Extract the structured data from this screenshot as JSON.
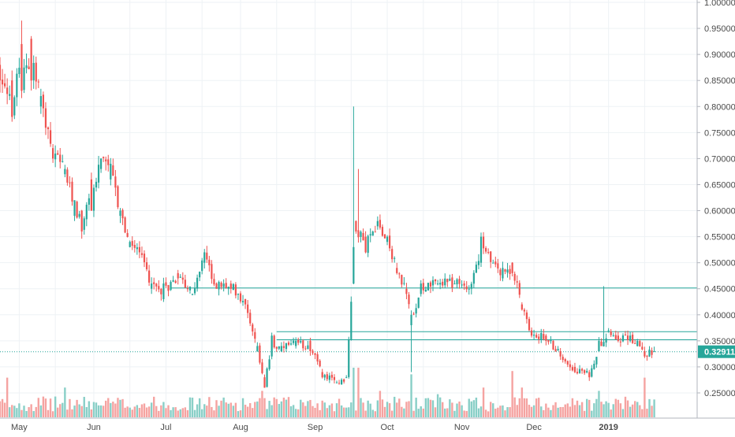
{
  "chart_data": {
    "type": "candlestick",
    "title": "",
    "xlabel": "",
    "ylabel": "",
    "ylim": [
      0.2,
      1.0
    ],
    "y_ticks": [
      "1.00000",
      "0.95000",
      "0.90000",
      "0.85000",
      "0.80000",
      "0.75000",
      "0.70000",
      "0.65000",
      "0.60000",
      "0.55000",
      "0.50000",
      "0.45000",
      "0.40000",
      "0.35000",
      "0.30000",
      "0.25000"
    ],
    "x_ticks": [
      "May",
      "Jun",
      "Jul",
      "Aug",
      "Sep",
      "Oct",
      "Nov",
      "Dec",
      "2019"
    ],
    "grid": true,
    "last_price_label": "0.32911",
    "colors": {
      "up": "#26a69a",
      "down": "#ef5350",
      "volume_up": "#89cfc7",
      "volume_down": "#f5a3a1",
      "grid": "#eef2f5",
      "axis_text": "#4a4a4a",
      "price_tag": "#26a69a"
    },
    "horizontal_lines": [
      {
        "price": 0.4515,
        "start": "2018-07-03"
      },
      {
        "price": 0.3675,
        "start": "2018-08-16"
      },
      {
        "price": 0.352,
        "start": "2018-08-16"
      },
      {
        "price": 0.3291,
        "start": "2018-04-23",
        "dotted": true
      }
    ],
    "anchors": [
      [
        "2018-04-23",
        0.88,
        0.85
      ],
      [
        "2018-04-28",
        0.85,
        0.78
      ],
      [
        "2018-05-02",
        0.92,
        0.83
      ],
      [
        "2018-05-06",
        0.93,
        0.85
      ],
      [
        "2018-05-10",
        0.8,
        0.82
      ],
      [
        "2018-05-15",
        0.72,
        0.7
      ],
      [
        "2018-05-20",
        0.67,
        0.68
      ],
      [
        "2018-05-24",
        0.59,
        0.62
      ],
      [
        "2018-05-27",
        0.6,
        0.56
      ],
      [
        "2018-05-31",
        0.66,
        0.6
      ],
      [
        "2018-06-04",
        0.68,
        0.7
      ],
      [
        "2018-06-08",
        0.66,
        0.69
      ],
      [
        "2018-06-12",
        0.59,
        0.6
      ],
      [
        "2018-06-16",
        0.53,
        0.54
      ],
      [
        "2018-06-20",
        0.53,
        0.52
      ],
      [
        "2018-06-25",
        0.45,
        0.46
      ],
      [
        "2018-06-30",
        0.43,
        0.46
      ],
      [
        "2018-07-06",
        0.48,
        0.47
      ],
      [
        "2018-07-12",
        0.44,
        0.44
      ],
      [
        "2018-07-17",
        0.5,
        0.52
      ],
      [
        "2018-07-22",
        0.46,
        0.45
      ],
      [
        "2018-07-28",
        0.46,
        0.45
      ],
      [
        "2018-08-03",
        0.43,
        0.42
      ],
      [
        "2018-08-08",
        0.33,
        0.34
      ],
      [
        "2018-08-11",
        0.28,
        0.26
      ],
      [
        "2018-08-14",
        0.32,
        0.36
      ],
      [
        "2018-08-18",
        0.33,
        0.34
      ],
      [
        "2018-08-24",
        0.34,
        0.35
      ],
      [
        "2018-08-30",
        0.35,
        0.33
      ],
      [
        "2018-09-04",
        0.29,
        0.28
      ],
      [
        "2018-09-10",
        0.27,
        0.27
      ],
      [
        "2018-09-14",
        0.28,
        0.28
      ],
      [
        "2018-09-17",
        0.46,
        0.53
      ],
      [
        "2018-09-18",
        0.58,
        0.56
      ],
      [
        "2018-09-22",
        0.55,
        0.52
      ],
      [
        "2018-09-27",
        0.57,
        0.58
      ],
      [
        "2018-10-01",
        0.54,
        0.55
      ],
      [
        "2018-10-05",
        0.49,
        0.48
      ],
      [
        "2018-10-09",
        0.45,
        0.44
      ],
      [
        "2018-10-11",
        0.38,
        0.4
      ],
      [
        "2018-10-15",
        0.44,
        0.46
      ],
      [
        "2018-10-22",
        0.46,
        0.46
      ],
      [
        "2018-10-29",
        0.46,
        0.46
      ],
      [
        "2018-11-04",
        0.45,
        0.45
      ],
      [
        "2018-11-09",
        0.5,
        0.55
      ],
      [
        "2018-11-14",
        0.5,
        0.5
      ],
      [
        "2018-11-18",
        0.47,
        0.49
      ],
      [
        "2018-11-22",
        0.5,
        0.48
      ],
      [
        "2018-11-26",
        0.42,
        0.41
      ],
      [
        "2018-11-30",
        0.37,
        0.36
      ],
      [
        "2018-12-06",
        0.36,
        0.35
      ],
      [
        "2018-12-12",
        0.33,
        0.32
      ],
      [
        "2018-12-18",
        0.3,
        0.29
      ],
      [
        "2018-12-24",
        0.29,
        0.28
      ],
      [
        "2018-12-28",
        0.33,
        0.35
      ],
      [
        "2019-01-01",
        0.37,
        0.37
      ],
      [
        "2019-01-05",
        0.36,
        0.35
      ],
      [
        "2019-01-10",
        0.35,
        0.36
      ],
      [
        "2019-01-13",
        0.34,
        0.35
      ],
      [
        "2019-01-16",
        0.33,
        0.32
      ],
      [
        "2019-01-20",
        0.33,
        0.33
      ]
    ],
    "spikes": [
      {
        "date": "2018-05-02",
        "high": 0.965
      },
      {
        "date": "2018-09-17",
        "high": 0.8
      },
      {
        "date": "2018-09-19",
        "high": 0.68
      },
      {
        "date": "2018-10-11",
        "low": 0.29
      },
      {
        "date": "2018-12-30",
        "high": 0.455
      }
    ],
    "volume_spikes": [
      {
        "date": "2018-04-26",
        "vol": 1.2
      },
      {
        "date": "2018-05-20",
        "vol": 0.9
      },
      {
        "date": "2018-08-10",
        "vol": 0.8
      },
      {
        "date": "2018-09-17",
        "vol": 1.5
      },
      {
        "date": "2018-09-19",
        "vol": 1.5
      },
      {
        "date": "2018-09-28",
        "vol": 0.8
      },
      {
        "date": "2018-10-11",
        "vol": 1.3
      },
      {
        "date": "2018-10-22",
        "vol": 0.7
      },
      {
        "date": "2018-11-10",
        "vol": 0.9
      },
      {
        "date": "2018-11-22",
        "vol": 1.4
      },
      {
        "date": "2018-11-26",
        "vol": 0.9
      },
      {
        "date": "2018-12-28",
        "vol": 0.8
      },
      {
        "date": "2019-01-16",
        "vol": 1.2
      }
    ]
  }
}
